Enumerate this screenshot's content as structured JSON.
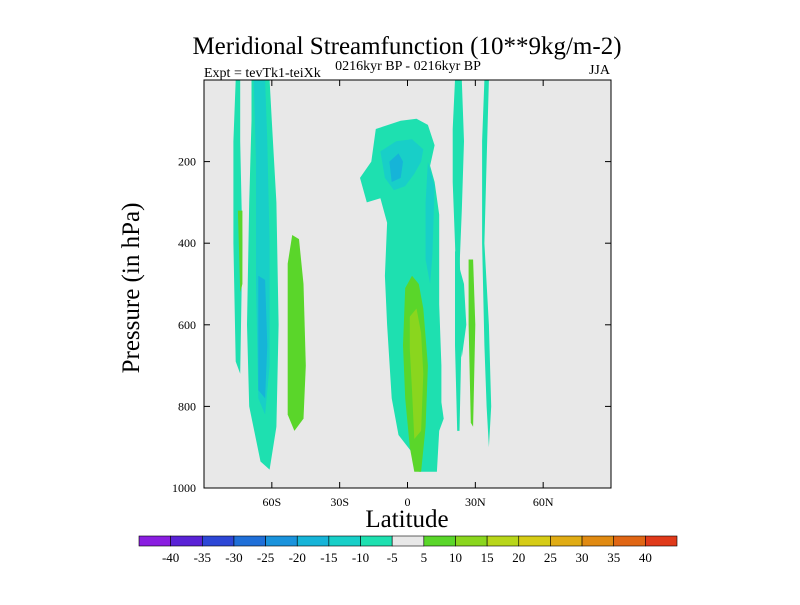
{
  "chart_data": {
    "type": "heatmap",
    "title": "Meridional Streamfunction (10**9kg/m-2)",
    "subtitle_left": "Expt = tevTk1-teiXk",
    "subtitle_center": "0216kyr BP - 0216kyr BP",
    "subtitle_right": "JJA",
    "xlabel": "Latitude",
    "ylabel": "Pressure (in hPa)",
    "xlim": [
      -90,
      90
    ],
    "ylim": [
      0,
      1000
    ],
    "y_inverted": true,
    "x_ticks": [
      {
        "value": -60,
        "label": "60S"
      },
      {
        "value": -30,
        "label": "30S"
      },
      {
        "value": 0,
        "label": "0"
      },
      {
        "value": 30,
        "label": "30N"
      },
      {
        "value": 60,
        "label": "60N"
      }
    ],
    "y_ticks": [
      {
        "value": 200,
        "label": "200"
      },
      {
        "value": 400,
        "label": "400"
      },
      {
        "value": 600,
        "label": "600"
      },
      {
        "value": 800,
        "label": "800"
      },
      {
        "value": 1000,
        "label": "1000"
      }
    ],
    "colorbar": {
      "labels": [
        "-40",
        "-35",
        "-30",
        "-25",
        "-20",
        "-15",
        "-10",
        "-5",
        "5",
        "10",
        "15",
        "20",
        "25",
        "30",
        "35",
        "40"
      ],
      "colors": [
        "#8a1ee0",
        "#5a22d6",
        "#2d47d6",
        "#1f6fd8",
        "#1a93dc",
        "#16b4d8",
        "#18cfc8",
        "#1ee0b0",
        "#e8e8e8",
        "#5ad62a",
        "#8ad61e",
        "#b8d61a",
        "#d6cc16",
        "#e0ac14",
        "#e08a12",
        "#e06614",
        "#e03a1a"
      ]
    },
    "missing_color": "#e8e8e8",
    "regions": [
      {
        "level": "-5",
        "points": [
          [
            -76,
            0
          ],
          [
            -74,
            0
          ],
          [
            -74,
            150
          ],
          [
            -73,
            400
          ],
          [
            -74,
            720
          ],
          [
            -76,
            690
          ],
          [
            -77,
            400
          ],
          [
            -77,
            150
          ]
        ]
      },
      {
        "level": "-5",
        "points": [
          [
            -69,
            0
          ],
          [
            -61,
            0
          ],
          [
            -60,
            100
          ],
          [
            -58,
            300
          ],
          [
            -57,
            600
          ],
          [
            -58,
            850
          ],
          [
            -61,
            955
          ],
          [
            -65,
            935
          ],
          [
            -70,
            800
          ],
          [
            -71,
            600
          ],
          [
            -70,
            300
          ],
          [
            -69,
            100
          ]
        ]
      },
      {
        "level": "-10",
        "points": [
          [
            -68,
            0
          ],
          [
            -63,
            0
          ],
          [
            -62,
            150
          ],
          [
            -61,
            400
          ],
          [
            -61,
            700
          ],
          [
            -63,
            820
          ],
          [
            -66,
            780
          ],
          [
            -67,
            500
          ],
          [
            -67,
            200
          ]
        ]
      },
      {
        "level": "-15",
        "points": [
          [
            -66,
            480
          ],
          [
            -63,
            490
          ],
          [
            -62,
            650
          ],
          [
            -63,
            780
          ],
          [
            -66,
            760
          ],
          [
            -66,
            600
          ]
        ]
      },
      {
        "level": "5",
        "points": [
          [
            -51,
            380
          ],
          [
            -48,
            390
          ],
          [
            -46,
            500
          ],
          [
            -45,
            700
          ],
          [
            -46,
            830
          ],
          [
            -50,
            860
          ],
          [
            -53,
            820
          ],
          [
            -53,
            600
          ],
          [
            -53,
            450
          ]
        ]
      },
      {
        "level": "5",
        "points": [
          [
            -75,
            320
          ],
          [
            -73,
            320
          ],
          [
            -73,
            500
          ],
          [
            -74,
            520
          ]
        ]
      },
      {
        "level": "-5",
        "points": [
          [
            -14,
            120
          ],
          [
            -3,
            100
          ],
          [
            4,
            95
          ],
          [
            9,
            110
          ],
          [
            12,
            160
          ],
          [
            10,
            210
          ],
          [
            12,
            250
          ],
          [
            14,
            330
          ],
          [
            14,
            550
          ],
          [
            15,
            700
          ],
          [
            15,
            790
          ],
          [
            16,
            830
          ],
          [
            14,
            860
          ],
          [
            13,
            960
          ],
          [
            5,
            960
          ],
          [
            3,
            920
          ],
          [
            -4,
            870
          ],
          [
            -7,
            780
          ],
          [
            -9,
            600
          ],
          [
            -10,
            480
          ],
          [
            -9,
            350
          ],
          [
            -12,
            290
          ],
          [
            -18,
            300
          ],
          [
            -21,
            240
          ],
          [
            -16,
            200
          ]
        ]
      },
      {
        "level": "-10",
        "points": [
          [
            -12,
            175
          ],
          [
            -5,
            150
          ],
          [
            2,
            145
          ],
          [
            7,
            170
          ],
          [
            6,
            200
          ],
          [
            3,
            230
          ],
          [
            -1,
            260
          ],
          [
            -6,
            270
          ],
          [
            -10,
            240
          ]
        ]
      },
      {
        "level": "-15",
        "points": [
          [
            -8,
            200
          ],
          [
            -4,
            180
          ],
          [
            -2,
            200
          ],
          [
            -3,
            240
          ],
          [
            -7,
            250
          ]
        ]
      },
      {
        "level": "-10",
        "points": [
          [
            9,
            200
          ],
          [
            12,
            260
          ],
          [
            11,
            430
          ],
          [
            10,
            500
          ],
          [
            8,
            440
          ],
          [
            8,
            300
          ]
        ]
      },
      {
        "level": "5",
        "points": [
          [
            -1,
            510
          ],
          [
            2,
            480
          ],
          [
            5,
            500
          ],
          [
            7,
            560
          ],
          [
            9,
            700
          ],
          [
            8,
            850
          ],
          [
            6,
            960
          ],
          [
            3,
            960
          ],
          [
            1,
            900
          ],
          [
            -1,
            780
          ],
          [
            -2,
            650
          ]
        ]
      },
      {
        "level": "10",
        "points": [
          [
            1,
            580
          ],
          [
            4,
            560
          ],
          [
            6,
            620
          ],
          [
            7,
            720
          ],
          [
            6,
            860
          ],
          [
            3,
            880
          ],
          [
            2,
            760
          ],
          [
            1,
            660
          ]
        ]
      },
      {
        "level": "-5",
        "points": [
          [
            21,
            420
          ],
          [
            23,
            420
          ],
          [
            24,
            600
          ],
          [
            23,
            860
          ],
          [
            22,
            860
          ],
          [
            21,
            650
          ]
        ]
      },
      {
        "level": "-5",
        "points": [
          [
            21,
            0
          ],
          [
            24,
            0
          ],
          [
            25,
            150
          ],
          [
            24,
            320
          ],
          [
            23,
            460
          ],
          [
            25,
            500
          ],
          [
            26,
            600
          ],
          [
            24,
            680
          ],
          [
            22,
            580
          ],
          [
            21,
            400
          ],
          [
            20,
            250
          ],
          [
            20,
            120
          ]
        ]
      },
      {
        "level": "-5",
        "points": [
          [
            34,
            0
          ],
          [
            36,
            0
          ],
          [
            35,
            200
          ],
          [
            34,
            400
          ],
          [
            36,
            600
          ],
          [
            37,
            800
          ],
          [
            36,
            900
          ],
          [
            35,
            800
          ],
          [
            34,
            650
          ],
          [
            33,
            400
          ],
          [
            33,
            150
          ]
        ]
      },
      {
        "level": "5",
        "points": [
          [
            27,
            440
          ],
          [
            29,
            440
          ],
          [
            30,
            600
          ],
          [
            29,
            850
          ],
          [
            28,
            840
          ],
          [
            27,
            600
          ]
        ]
      }
    ]
  }
}
